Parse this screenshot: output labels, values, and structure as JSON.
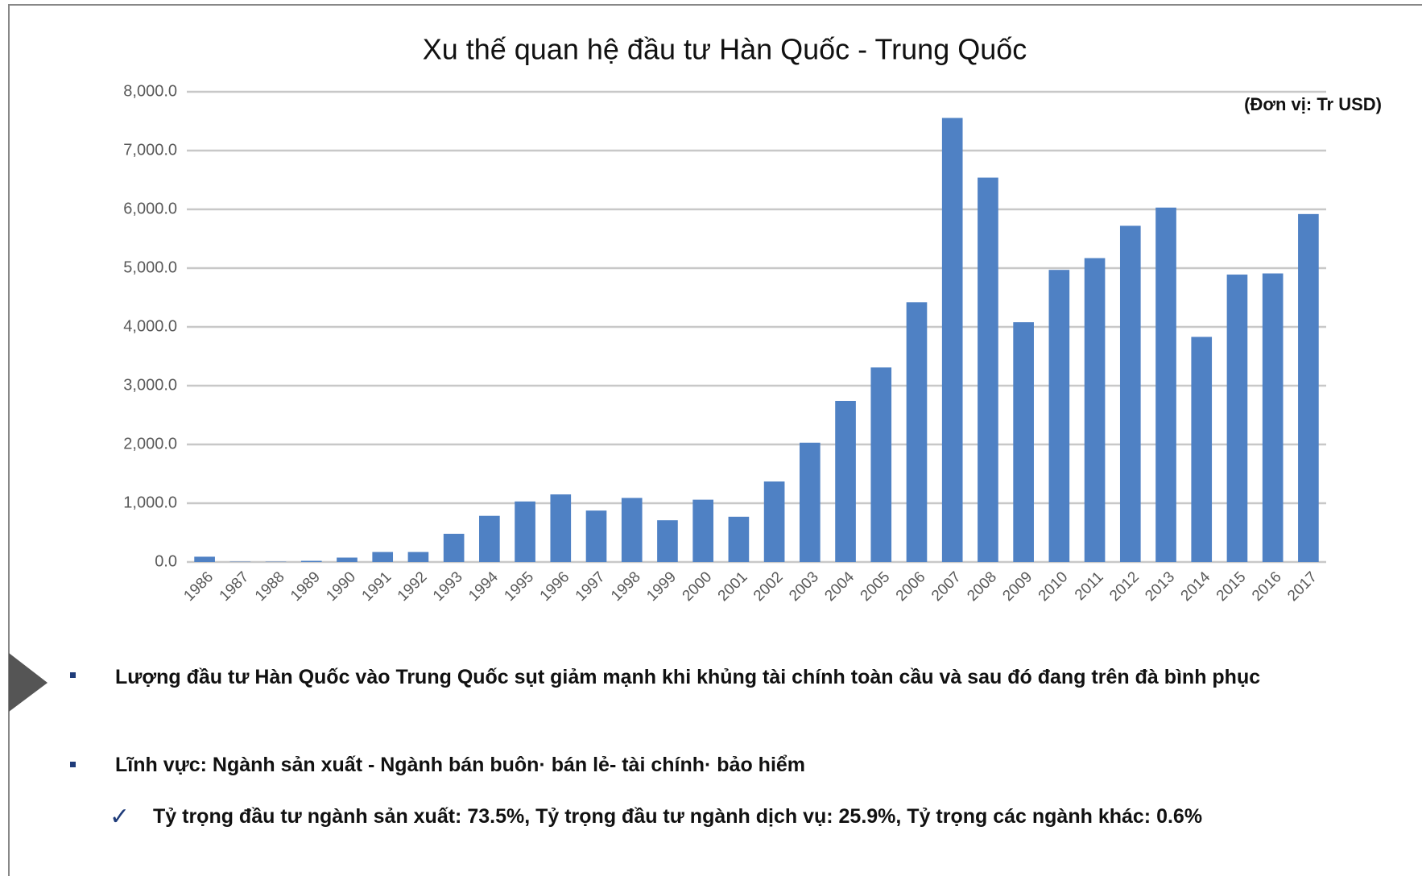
{
  "chart_data": {
    "type": "bar",
    "title": "Xu thế quan hệ đầu tư Hàn Quốc - Trung Quốc",
    "unit_note": "(Đơn vị: Tr USD)",
    "categories": [
      "1986",
      "1987",
      "1988",
      "1989",
      "1990",
      "1991",
      "1992",
      "1993",
      "1994",
      "1995",
      "1996",
      "1997",
      "1998",
      "1999",
      "2000",
      "2001",
      "2002",
      "2003",
      "2004",
      "2005",
      "2006",
      "2007",
      "2008",
      "2009",
      "2010",
      "2011",
      "2012",
      "2013",
      "2014",
      "2015",
      "2016",
      "2017"
    ],
    "values": [
      90,
      5,
      5,
      20,
      75,
      170,
      170,
      480,
      785,
      1030,
      1150,
      875,
      1090,
      710,
      1060,
      770,
      1370,
      2030,
      2740,
      3310,
      4420,
      7555,
      6540,
      4080,
      4970,
      5170,
      5720,
      6030,
      3830,
      4890,
      4910,
      5920
    ],
    "color": "#4f81c4",
    "ylim": [
      0,
      8000
    ],
    "yticks": [
      {
        "value": 0,
        "label": "0.0"
      },
      {
        "value": 1000,
        "label": "1,000.0"
      },
      {
        "value": 2000,
        "label": "2,000.0"
      },
      {
        "value": 3000,
        "label": "3,000.0"
      },
      {
        "value": 4000,
        "label": "4,000.0"
      },
      {
        "value": 5000,
        "label": "5,000.0"
      },
      {
        "value": 6000,
        "label": "6,000.0"
      },
      {
        "value": 7000,
        "label": "7,000.0"
      },
      {
        "value": 8000,
        "label": "8,000.0"
      }
    ],
    "grid": true
  },
  "notes": [
    "Lượng đầu tư Hàn Quốc vào Trung Quốc sụt giảm mạnh khi khủng tài chính toàn cầu và sau đó đang trên đà bình phục",
    "Lĩnh vực: Ngành sản xuất - Ngành bán buôn· bán lẻ- tài chính· bảo hiểm",
    "Tỷ trọng đầu tư ngành sản xuất: 73.5%, Tỷ trọng đầu tư ngành dịch vụ: 25.9%, Tỷ trọng các ngành khác: 0.6%"
  ]
}
